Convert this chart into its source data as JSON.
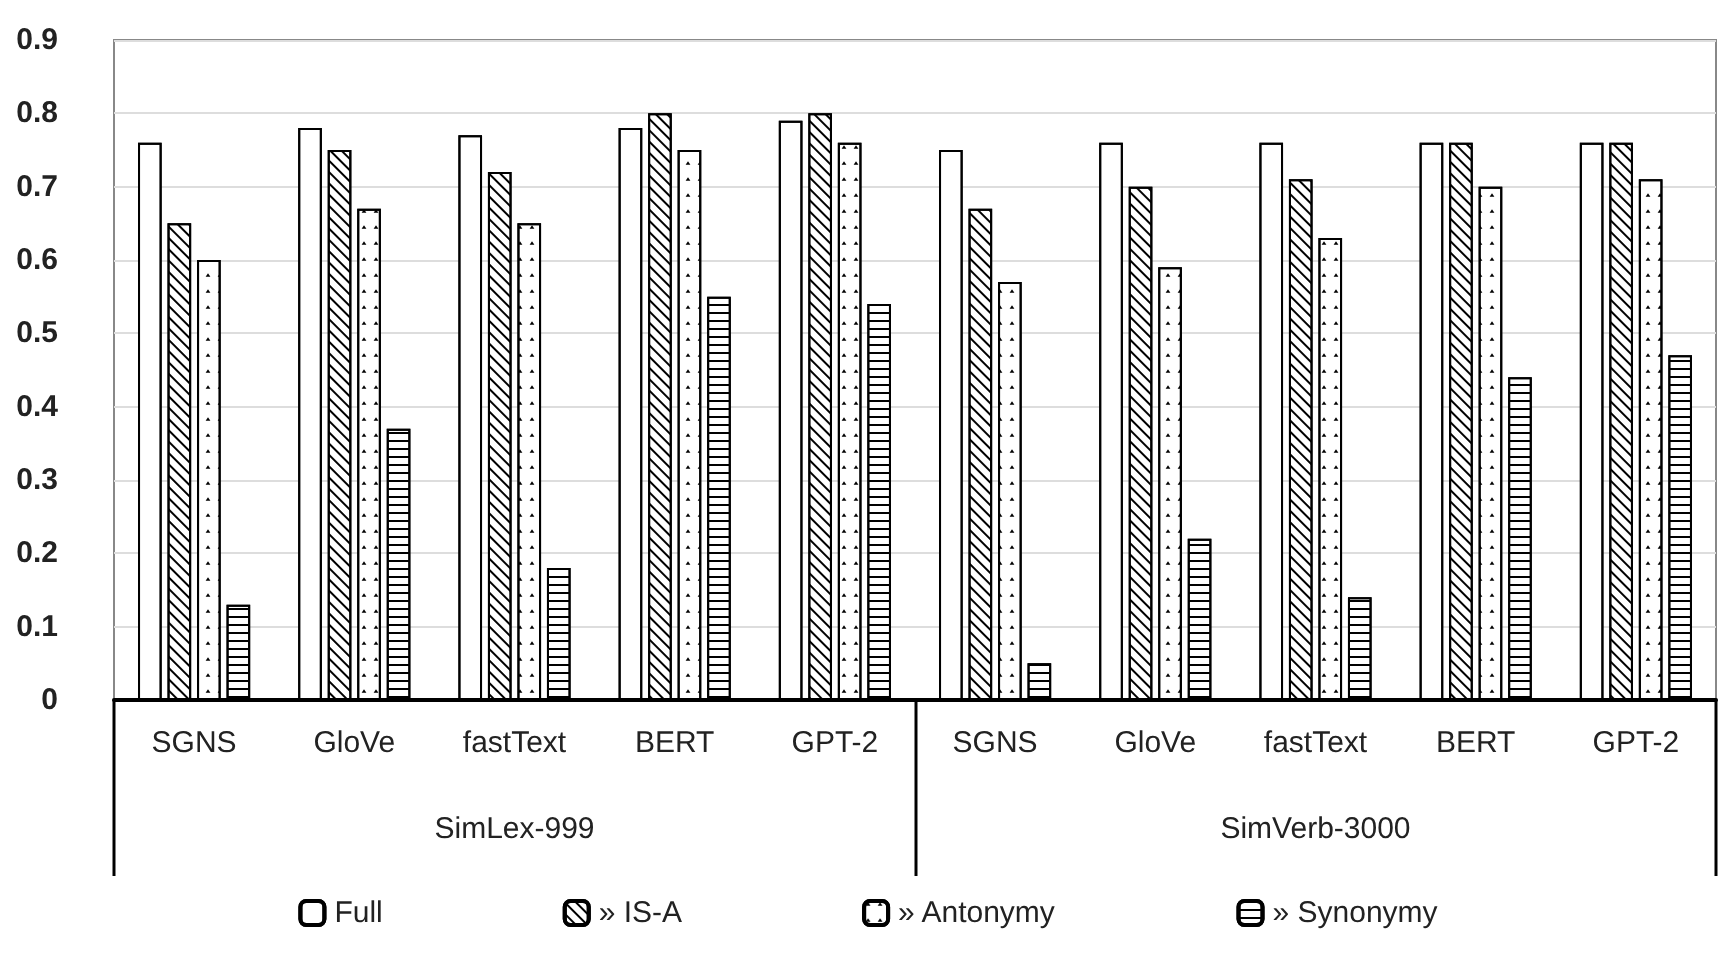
{
  "chart_data": {
    "type": "bar",
    "categories": [
      "SGNS",
      "GloVe",
      "fastText",
      "BERT",
      "GPT-2",
      "SGNS",
      "GloVe",
      "fastText",
      "BERT",
      "GPT-2"
    ],
    "series": [
      {
        "name": "Full",
        "color": "#ffffff",
        "values": [
          0.76,
          0.78,
          0.77,
          0.78,
          0.79,
          0.75,
          0.76,
          0.76,
          0.76,
          0.76
        ]
      },
      {
        "name": "» IS-A",
        "color": "#ffffff",
        "values": [
          0.65,
          0.75,
          0.72,
          0.8,
          0.8,
          0.67,
          0.7,
          0.71,
          0.76,
          0.76
        ]
      },
      {
        "name": "» Antonymy",
        "color": "#ffffff",
        "values": [
          0.6,
          0.67,
          0.65,
          0.75,
          0.76,
          0.57,
          0.59,
          0.63,
          0.7,
          0.71
        ]
      },
      {
        "name": "» Synonymy",
        "color": "#ffffff",
        "values": [
          0.13,
          0.37,
          0.18,
          0.55,
          0.54,
          0.05,
          0.22,
          0.14,
          0.44,
          0.47
        ]
      }
    ],
    "annotations": [
      "SimLex-999",
      "SimVerb-3000"
    ],
    "ylim": [
      0,
      0.9
    ],
    "yticks": [
      0,
      0.1,
      0.2,
      0.3,
      0.4,
      0.5,
      0.6,
      0.7,
      0.8,
      0.9
    ],
    "grid": "y",
    "legend": "bottom"
  }
}
